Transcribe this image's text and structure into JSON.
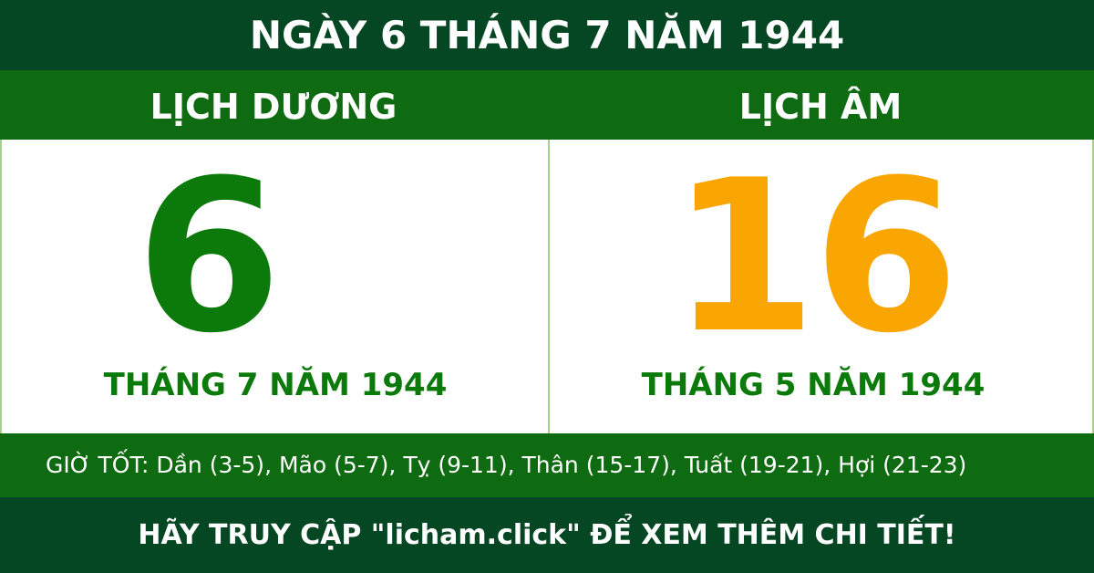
{
  "title": "NGÀY 6 THÁNG 7 NĂM 1944",
  "solar": {
    "label": "LỊCH DƯƠNG",
    "day": "6",
    "month_year": "THÁNG 7 NĂM 1944"
  },
  "lunar": {
    "label": "LỊCH ÂM",
    "day": "16",
    "month_year": "THÁNG 5 NĂM 1944"
  },
  "good_hours": "GIỜ TỐT: Dần (3-5), Mão (5-7), Tỵ (9-11), Thân (15-17), Tuất (19-21), Hợi (21-23)",
  "footer": "HÃY TRUY CẬP \"licham.click\" ĐỂ XEM THÊM CHI TIẾT!",
  "colors": {
    "dark_green": "#044722",
    "green": "#0f6b11",
    "solar_day": "#0b7a0b",
    "lunar_day": "#f9a602"
  }
}
